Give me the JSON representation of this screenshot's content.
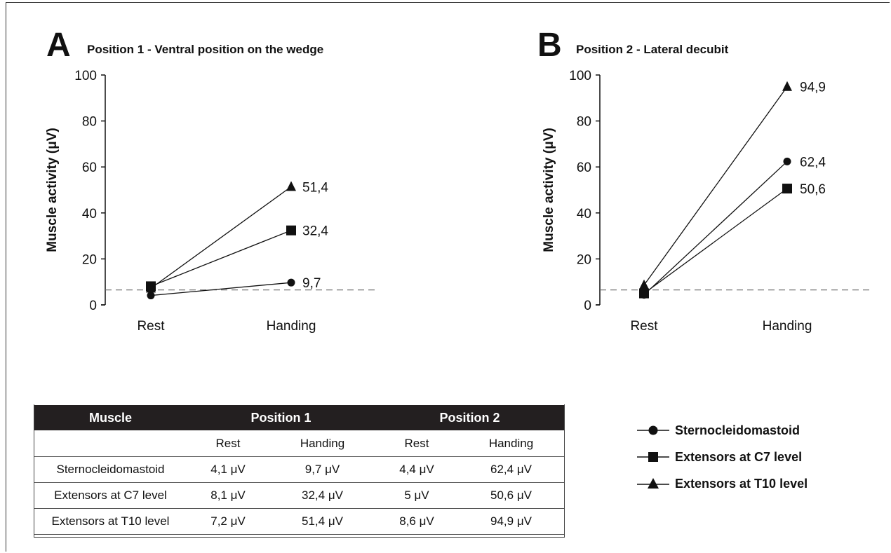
{
  "chart_data": [
    {
      "type": "line",
      "panel_letter": "A",
      "title": "Position 1 - Ventral position on the wedge",
      "ylabel": "Muscle activity (μV)",
      "categories": [
        "Rest",
        "Handing"
      ],
      "ylim": [
        0,
        100
      ],
      "yticks": [
        "0",
        "20",
        "40",
        "60",
        "80",
        "100"
      ],
      "reference_line": 6.5,
      "series": [
        {
          "name": "Sternocleidomastoid",
          "marker": "circle",
          "values": [
            4.1,
            9.7
          ],
          "end_label": "9,7"
        },
        {
          "name": "Extensors at C7 level",
          "marker": "square",
          "values": [
            8.1,
            32.4
          ],
          "end_label": "32,4"
        },
        {
          "name": "Extensors at T10 level",
          "marker": "triangle",
          "values": [
            7.2,
            51.4
          ],
          "end_label": "51,4"
        }
      ]
    },
    {
      "type": "line",
      "panel_letter": "B",
      "title": "Position 2 - Lateral  decubit",
      "ylabel": "Muscle activity (μV)",
      "categories": [
        "Rest",
        "Handing"
      ],
      "ylim": [
        0,
        100
      ],
      "yticks": [
        "0",
        "20",
        "40",
        "60",
        "80",
        "100"
      ],
      "reference_line": 6.5,
      "series": [
        {
          "name": "Sternocleidomastoid",
          "marker": "circle",
          "values": [
            4.4,
            62.4
          ],
          "end_label": "62,4"
        },
        {
          "name": "Extensors at C7 level",
          "marker": "square",
          "values": [
            5,
            50.6
          ],
          "end_label": "50,6"
        },
        {
          "name": "Extensors at T10 level",
          "marker": "triangle",
          "values": [
            8.6,
            94.9
          ],
          "end_label": "94,9"
        }
      ]
    }
  ],
  "table": {
    "headers": [
      "Muscle",
      "Position 1",
      "Position 2"
    ],
    "subheaders": [
      "",
      "Rest",
      "Handing",
      "Rest",
      "Handing"
    ],
    "rows": [
      [
        "Sternocleidomastoid",
        "4,1 μV",
        "9,7 μV",
        "4,4 μV",
        "62,4 μV"
      ],
      [
        "Extensors at C7 level",
        "8,1 μV",
        "32,4 μV",
        "5 μV",
        "50,6 μV"
      ],
      [
        "Extensors at T10 level",
        "7,2 μV",
        "51,4 μV",
        "8,6 μV",
        "94,9 μV"
      ]
    ]
  },
  "legend": [
    {
      "label": "Sternocleidomastoid",
      "marker": "circle"
    },
    {
      "label": "Extensors at C7 level",
      "marker": "square"
    },
    {
      "label": "Extensors at T10 level",
      "marker": "triangle"
    }
  ],
  "colors": {
    "line": "#111111",
    "table_header_bg": "#231f20",
    "reference_line": "#666666"
  }
}
